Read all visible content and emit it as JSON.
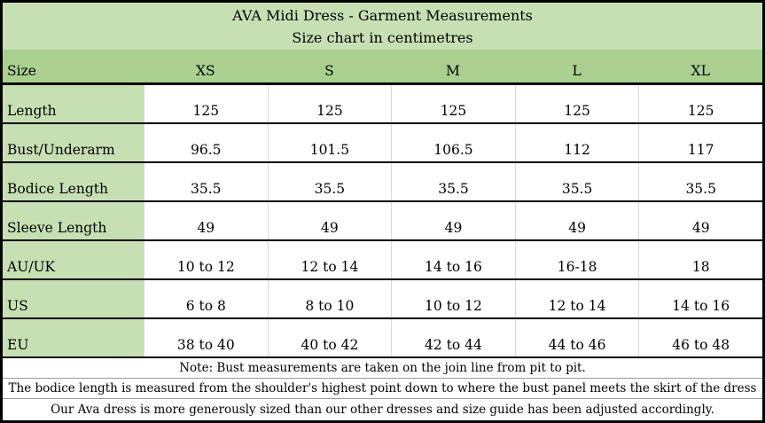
{
  "table": {
    "title": "AVA Midi Dress - Garment Measurements",
    "subtitle": "Size chart in centimetres",
    "header": {
      "label": "Size",
      "sizes": [
        "XS",
        "S",
        "M",
        "L",
        "XL"
      ]
    },
    "rows": [
      {
        "label": "Length",
        "values": [
          "125",
          "125",
          "125",
          "125",
          "125"
        ]
      },
      {
        "label": "Bust/Underarm",
        "values": [
          "96.5",
          "101.5",
          "106.5",
          "112",
          "117"
        ]
      },
      {
        "label": "Bodice Length",
        "values": [
          "35.5",
          "35.5",
          "35.5",
          "35.5",
          "35.5"
        ]
      },
      {
        "label": "Sleeve Length",
        "values": [
          "49",
          "49",
          "49",
          "49",
          "49"
        ]
      },
      {
        "label": "AU/UK",
        "values": [
          "10 to 12",
          "12 to 14",
          "14 to 16",
          "16-18",
          "18"
        ]
      },
      {
        "label": "US",
        "values": [
          "6 to 8",
          "8 to 10",
          "10 to 12",
          "12 to 14",
          "14 to 16"
        ]
      },
      {
        "label": "EU",
        "values": [
          "38 to 40",
          "40 to 42",
          "42 to 44",
          "44 to 46",
          "46 to 48"
        ]
      }
    ],
    "notes": [
      "Note: Bust measurements are taken on the join line from pit to pit.",
      "The bodice length is measured from the shoulder's highest point down to where the bust panel meets the skirt of the dress",
      "Our Ava dress is more generously sized than our other dresses and size guide has been adjusted accordingly."
    ],
    "colors": {
      "title_band_green": "#c6e0b4",
      "header_row_green": "#a9d08e",
      "row_label_green": "#c6e0b4",
      "border_black": "#000000",
      "column_rule_gray": "#d9d9d9",
      "note_divider_gray": "#9a9a9a"
    }
  }
}
